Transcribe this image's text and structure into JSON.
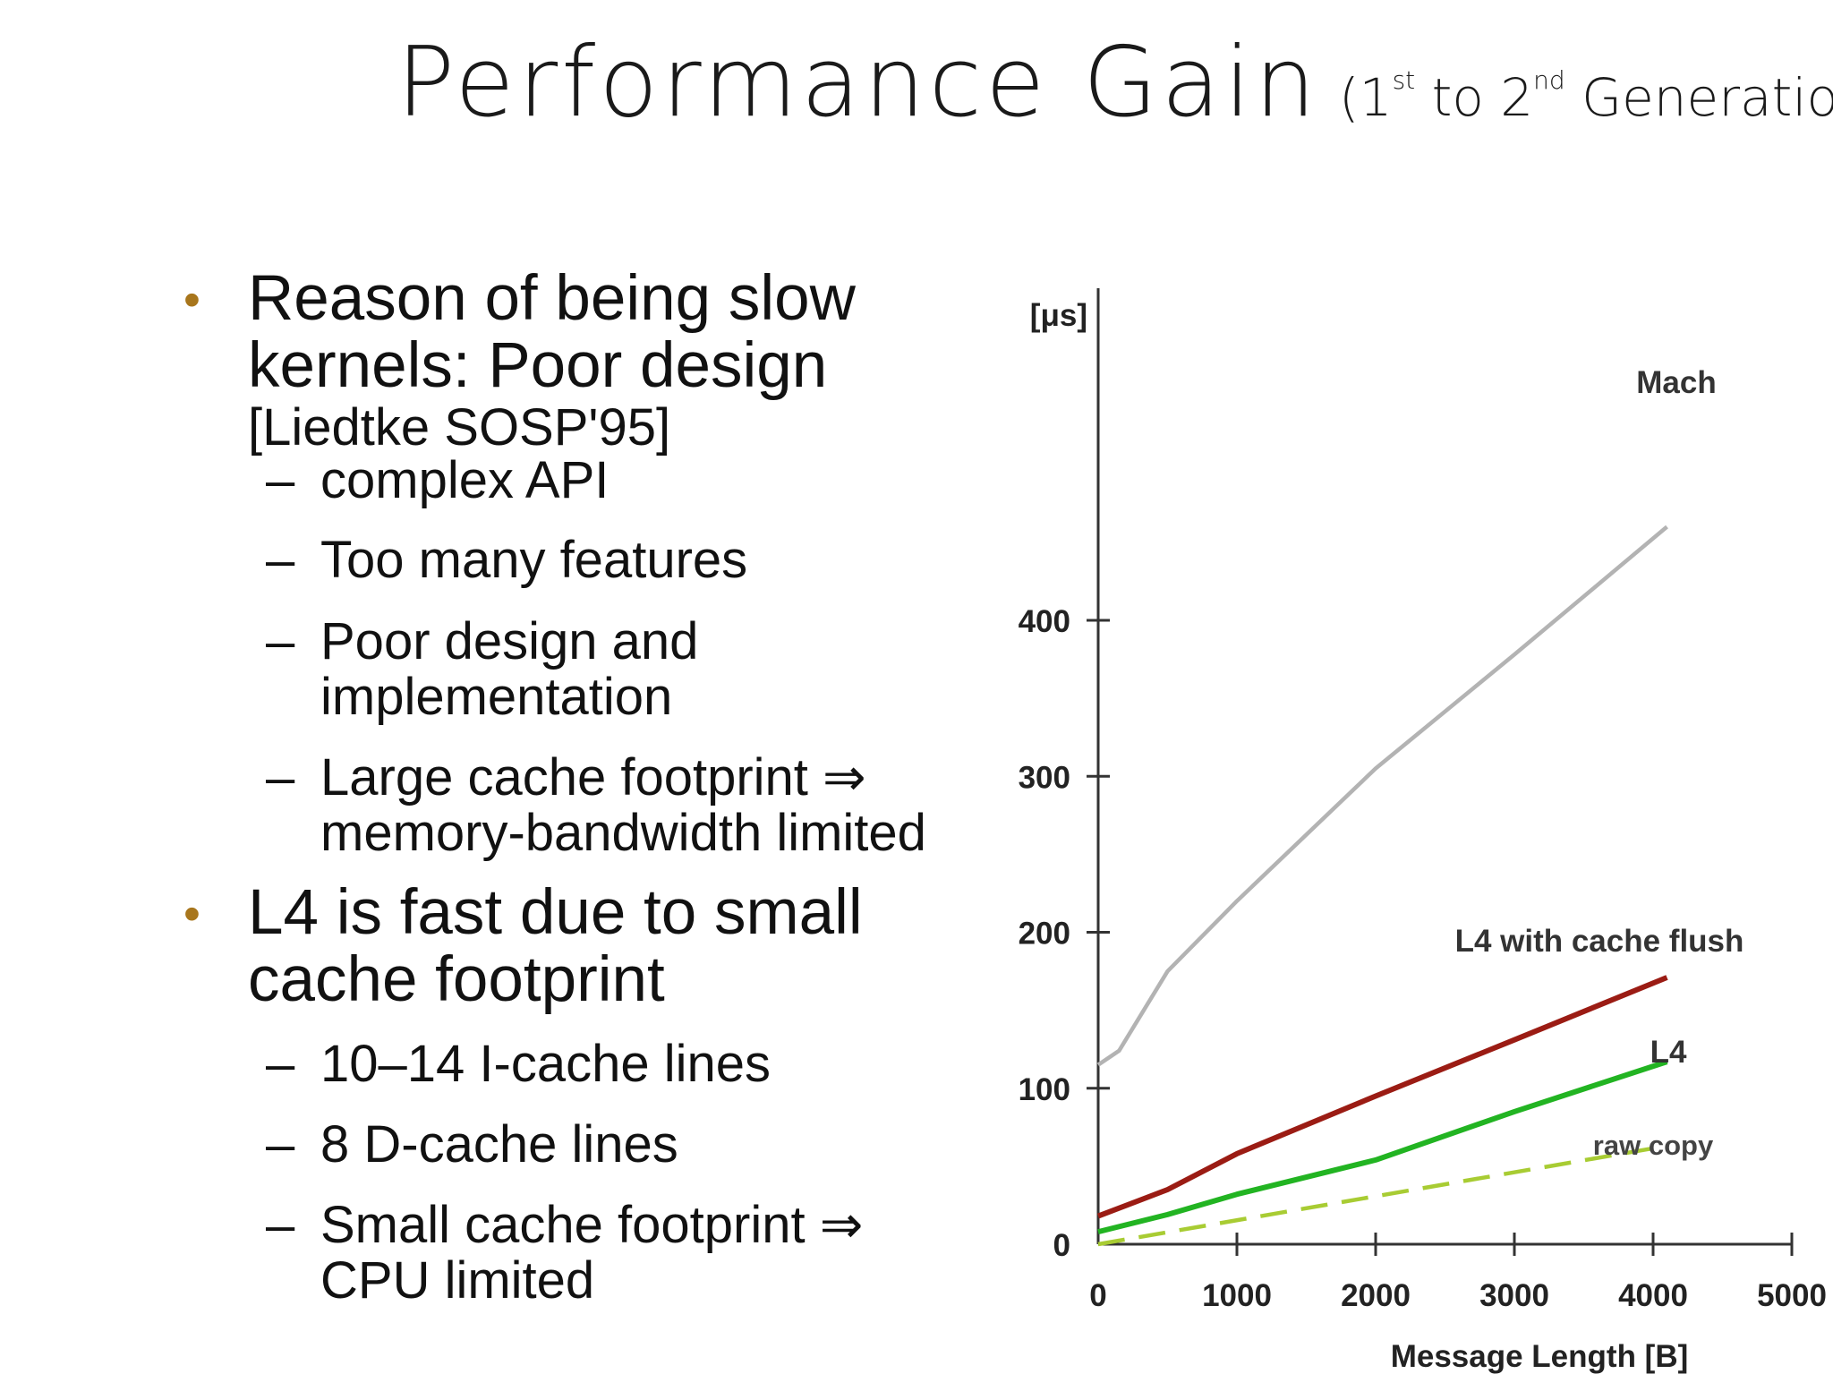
{
  "slide": {
    "title": "Performance Gain",
    "subtitle": {
      "open": "(1",
      "sup1": "st",
      "mid": " to 2",
      "sup2": "nd",
      "close": " Generation)"
    }
  },
  "bullets": [
    {
      "line1": "Reason of being slow",
      "line2": "kernels: Poor design",
      "ref": "[Liedtke SOSP'95]",
      "subitems": [
        {
          "lines": [
            "complex API"
          ]
        },
        {
          "lines": [
            "Too many features"
          ]
        },
        {
          "lines": [
            "Poor design and",
            "implementation"
          ]
        },
        {
          "lines": [
            "Large cache footprint ⇒",
            "memory-bandwidth limited"
          ]
        }
      ]
    },
    {
      "line1": "L4 is fast due to small",
      "line2": "cache footprint",
      "subitems": [
        {
          "lines": [
            "10–14 I-cache lines"
          ]
        },
        {
          "lines": [
            "8 D-cache lines"
          ]
        },
        {
          "lines": [
            "Small cache footprint ⇒",
            "CPU limited"
          ]
        }
      ]
    }
  ],
  "chart_data": {
    "type": "line",
    "xlabel": "Message Length [B]",
    "ylabel": "[μs]",
    "xlim": [
      0,
      5000
    ],
    "ylim": [
      0,
      400
    ],
    "xticks": [
      0,
      1000,
      2000,
      3000,
      4000,
      5000
    ],
    "yticks": [
      0,
      100,
      200,
      300,
      400
    ],
    "grid": false,
    "series": [
      {
        "name": "Mach",
        "color": "#b3b3b3",
        "dash": false,
        "x": [
          0,
          150,
          500,
          1000,
          2000,
          3000,
          4100
        ],
        "y": [
          115,
          124,
          175,
          220,
          305,
          378,
          460
        ]
      },
      {
        "name": "L4  with  cache flush",
        "color": "#9b1c14",
        "dash": false,
        "x": [
          0,
          500,
          1000,
          2000,
          3000,
          4100
        ],
        "y": [
          18,
          35,
          58,
          95,
          131,
          171
        ]
      },
      {
        "name": "L4",
        "color": "#22b422",
        "dash": false,
        "x": [
          0,
          500,
          1000,
          2000,
          3000,
          4100
        ],
        "y": [
          8,
          19,
          32,
          54,
          85,
          117
        ]
      },
      {
        "name": "raw copy",
        "color": "#a8cc33",
        "dash": true,
        "x": [
          0,
          4100
        ],
        "y": [
          0,
          63
        ]
      }
    ]
  }
}
